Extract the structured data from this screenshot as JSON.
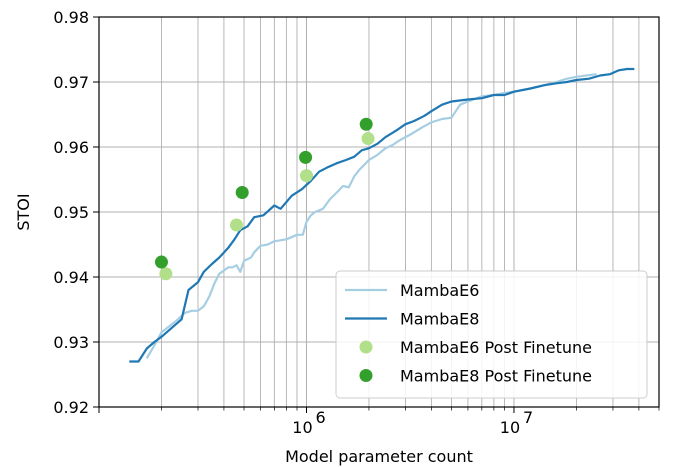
{
  "chart_data": {
    "type": "line",
    "xlabel": "Model parameter count",
    "ylabel": "STOI",
    "x_scale": "log",
    "xlim": [
      100000,
      50000000
    ],
    "ylim": [
      0.92,
      0.98
    ],
    "x_ticks": [
      {
        "value": 1000000,
        "base": "10",
        "exp": "6"
      },
      {
        "value": 10000000,
        "base": "10",
        "exp": "7"
      }
    ],
    "y_ticks": [
      "0.92",
      "0.93",
      "0.94",
      "0.95",
      "0.96",
      "0.97",
      "0.98"
    ],
    "grid": true,
    "legend_position": "lower-right",
    "series": [
      {
        "name": "MambaE6",
        "kind": "line",
        "color": "#a6cee3",
        "points": [
          [
            170000,
            0.9275
          ],
          [
            185000,
            0.9295
          ],
          [
            200000,
            0.9315
          ],
          [
            220000,
            0.9325
          ],
          [
            240000,
            0.9335
          ],
          [
            260000,
            0.9345
          ],
          [
            280000,
            0.9348
          ],
          [
            300000,
            0.9348
          ],
          [
            320000,
            0.9355
          ],
          [
            340000,
            0.937
          ],
          [
            360000,
            0.939
          ],
          [
            380000,
            0.9405
          ],
          [
            400000,
            0.941
          ],
          [
            420000,
            0.9415
          ],
          [
            440000,
            0.9415
          ],
          [
            460000,
            0.9418
          ],
          [
            480000,
            0.9408
          ],
          [
            500000,
            0.9425
          ],
          [
            540000,
            0.943
          ],
          [
            560000,
            0.9438
          ],
          [
            600000,
            0.9448
          ],
          [
            650000,
            0.945
          ],
          [
            700000,
            0.9455
          ],
          [
            800000,
            0.9458
          ],
          [
            900000,
            0.9465
          ],
          [
            960000,
            0.9465
          ],
          [
            1000000,
            0.9485
          ],
          [
            1050000,
            0.9495
          ],
          [
            1100000,
            0.95
          ],
          [
            1200000,
            0.9505
          ],
          [
            1300000,
            0.952
          ],
          [
            1400000,
            0.953
          ],
          [
            1500000,
            0.954
          ],
          [
            1600000,
            0.9538
          ],
          [
            1700000,
            0.9555
          ],
          [
            1800000,
            0.9565
          ],
          [
            2000000,
            0.958
          ],
          [
            2200000,
            0.9588
          ],
          [
            2400000,
            0.9598
          ],
          [
            2600000,
            0.9603
          ],
          [
            2800000,
            0.961
          ],
          [
            3200000,
            0.962
          ],
          [
            3600000,
            0.963
          ],
          [
            4000000,
            0.9638
          ],
          [
            4500000,
            0.9643
          ],
          [
            5000000,
            0.9645
          ],
          [
            5500000,
            0.9665
          ],
          [
            6000000,
            0.967
          ],
          [
            7000000,
            0.9678
          ],
          [
            8000000,
            0.968
          ],
          [
            9000000,
            0.9683
          ],
          [
            10000000,
            0.9685
          ],
          [
            12000000,
            0.969
          ],
          [
            14000000,
            0.9695
          ],
          [
            16000000,
            0.97
          ],
          [
            18000000,
            0.9705
          ],
          [
            20000000,
            0.9708
          ],
          [
            25000000,
            0.9712
          ]
        ]
      },
      {
        "name": "MambaE8",
        "kind": "line",
        "color": "#1f78b4",
        "points": [
          [
            140000,
            0.927
          ],
          [
            155000,
            0.927
          ],
          [
            170000,
            0.929
          ],
          [
            185000,
            0.93
          ],
          [
            200000,
            0.9308
          ],
          [
            230000,
            0.9325
          ],
          [
            250000,
            0.9335
          ],
          [
            270000,
            0.938
          ],
          [
            300000,
            0.9392
          ],
          [
            320000,
            0.9408
          ],
          [
            350000,
            0.942
          ],
          [
            380000,
            0.943
          ],
          [
            420000,
            0.9445
          ],
          [
            450000,
            0.9458
          ],
          [
            480000,
            0.9472
          ],
          [
            520000,
            0.9478
          ],
          [
            560000,
            0.9492
          ],
          [
            620000,
            0.9495
          ],
          [
            700000,
            0.951
          ],
          [
            750000,
            0.9505
          ],
          [
            850000,
            0.9525
          ],
          [
            950000,
            0.9535
          ],
          [
            1050000,
            0.9548
          ],
          [
            1150000,
            0.9562
          ],
          [
            1250000,
            0.9568
          ],
          [
            1400000,
            0.9575
          ],
          [
            1550000,
            0.958
          ],
          [
            1700000,
            0.9585
          ],
          [
            1850000,
            0.9595
          ],
          [
            2000000,
            0.9598
          ],
          [
            2200000,
            0.9605
          ],
          [
            2400000,
            0.9615
          ],
          [
            2700000,
            0.9625
          ],
          [
            3000000,
            0.9635
          ],
          [
            3300000,
            0.964
          ],
          [
            3700000,
            0.9648
          ],
          [
            4000000,
            0.9655
          ],
          [
            4500000,
            0.9665
          ],
          [
            5000000,
            0.967
          ],
          [
            6000000,
            0.9673
          ],
          [
            7000000,
            0.9675
          ],
          [
            8000000,
            0.968
          ],
          [
            9000000,
            0.968
          ],
          [
            10000000,
            0.9685
          ],
          [
            12000000,
            0.969
          ],
          [
            14000000,
            0.9695
          ],
          [
            16000000,
            0.9698
          ],
          [
            18000000,
            0.97
          ],
          [
            20000000,
            0.9703
          ],
          [
            23000000,
            0.9705
          ],
          [
            26000000,
            0.971
          ],
          [
            29000000,
            0.9712
          ],
          [
            32000000,
            0.9718
          ],
          [
            35000000,
            0.972
          ],
          [
            38000000,
            0.972
          ]
        ]
      },
      {
        "name": "MambaE6 Post Finetune",
        "kind": "scatter",
        "color": "#b2df8a",
        "points": [
          [
            210000,
            0.9405
          ],
          [
            460000,
            0.948
          ],
          [
            1000000,
            0.9556
          ],
          [
            1980000,
            0.9613
          ]
        ]
      },
      {
        "name": "MambaE8 Post Finetune",
        "kind": "scatter",
        "color": "#33a02c",
        "points": [
          [
            200000,
            0.9423
          ],
          [
            490000,
            0.953
          ],
          [
            990000,
            0.9584
          ],
          [
            1940000,
            0.9635
          ]
        ]
      }
    ]
  }
}
